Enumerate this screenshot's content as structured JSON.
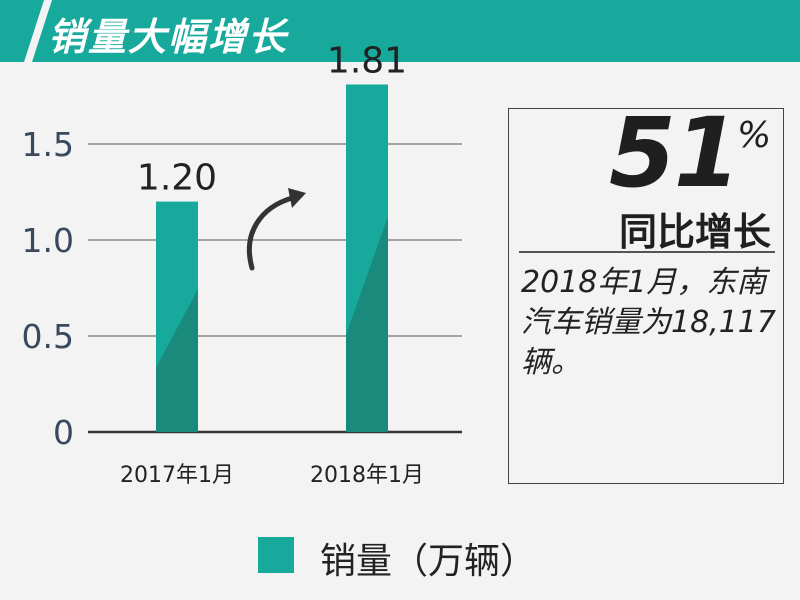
{
  "banner": {
    "title": "销量大幅增长"
  },
  "colors": {
    "accent": "#17a99b",
    "accent_dark": "#1a8a7c",
    "gridline": "#555555"
  },
  "chart_data": {
    "type": "bar",
    "categories": [
      "2017年1月",
      "2018年1月"
    ],
    "series": [
      {
        "name": "销量（万辆）",
        "values": [
          1.2,
          1.81
        ]
      }
    ],
    "data_labels": [
      "1.20",
      "1.81"
    ],
    "y_ticks": [
      0,
      0.5,
      1.0,
      1.5
    ],
    "y_tick_labels": [
      "0",
      "0.5",
      "1.0",
      "1.5"
    ],
    "ylim": [
      0,
      1.75
    ],
    "grid": true,
    "legend": "bottom"
  },
  "highlight": {
    "value": "51",
    "unit": "%",
    "label": "同比增长",
    "description": "2018年1月，东南汽车销量为18,117辆。"
  },
  "legend": {
    "label": "销量（万辆）"
  }
}
